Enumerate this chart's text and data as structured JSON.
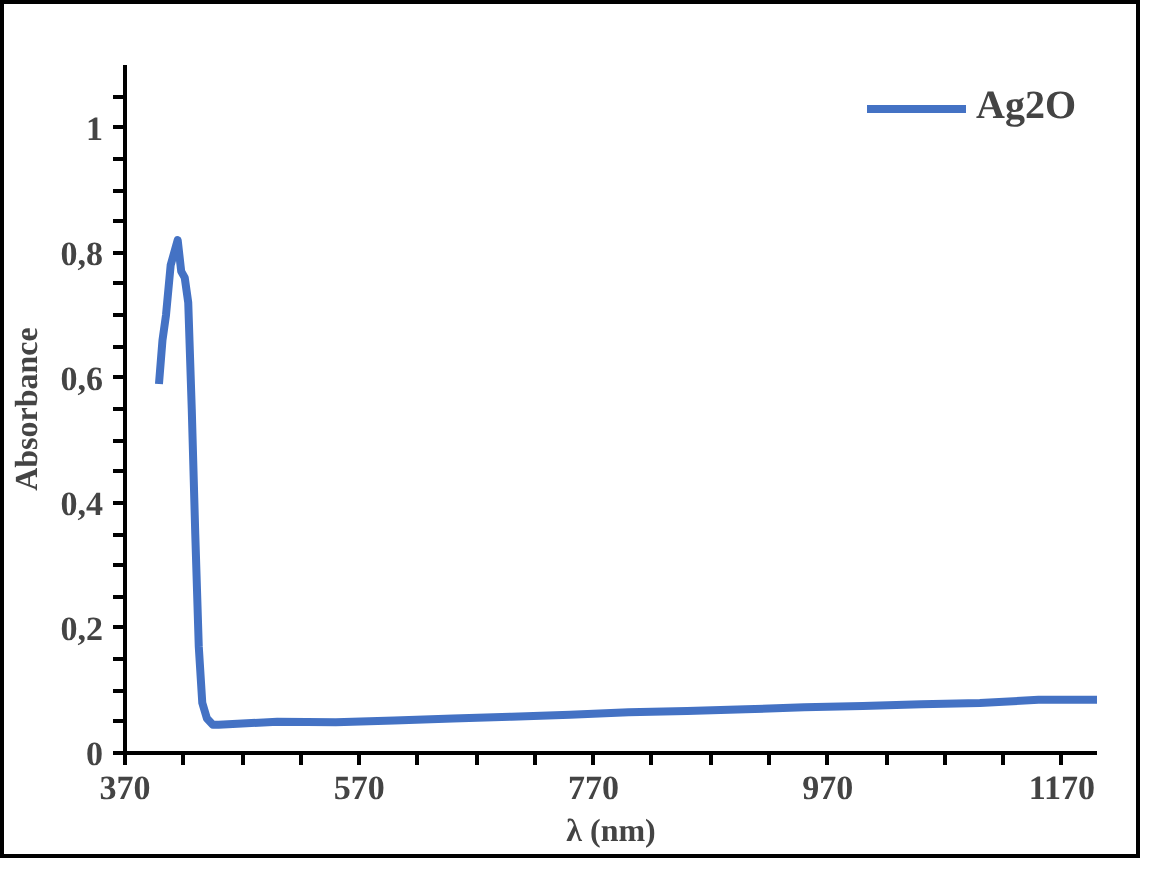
{
  "chart_data": {
    "type": "line",
    "xlabel": "λ (nm)",
    "ylabel": "Absorbance",
    "x": [
      399,
      402,
      405,
      409,
      412,
      415,
      418,
      421,
      424,
      427,
      430,
      433,
      436,
      440,
      445,
      450,
      470,
      500,
      550,
      600,
      650,
      700,
      750,
      800,
      850,
      900,
      950,
      1000,
      1050,
      1100,
      1150,
      1200
    ],
    "series": [
      {
        "name": "Ag2O",
        "color": "#4472c4",
        "values": [
          0.59,
          0.66,
          0.7,
          0.78,
          0.8,
          0.82,
          0.77,
          0.76,
          0.72,
          0.55,
          0.35,
          0.17,
          0.08,
          0.055,
          0.045,
          0.045,
          0.047,
          0.05,
          0.049,
          0.052,
          0.055,
          0.058,
          0.061,
          0.065,
          0.067,
          0.07,
          0.073,
          0.075,
          0.078,
          0.08,
          0.085,
          0.085
        ]
      }
    ],
    "xlim": [
      370,
      1200
    ],
    "ylim": [
      0,
      1.1
    ],
    "xticks": [
      370,
      {
        "value": 420,
        "label": null
      },
      {
        "value": 470,
        "label": null
      },
      {
        "value": 520,
        "label": null
      },
      570,
      {
        "value": 620,
        "label": null
      },
      {
        "value": 670,
        "label": null
      },
      {
        "value": 720,
        "label": null
      },
      770,
      {
        "value": 820,
        "label": null
      },
      {
        "value": 870,
        "label": null
      },
      {
        "value": 920,
        "label": null
      },
      970,
      {
        "value": 1020,
        "label": null
      },
      {
        "value": 1070,
        "label": null
      },
      {
        "value": 1120,
        "label": null
      },
      1170
    ],
    "yticks": [
      0,
      {
        "value": 0.05,
        "label": null
      },
      {
        "value": 0.1,
        "label": null
      },
      {
        "value": 0.15,
        "label": null
      },
      {
        "value": 0.2,
        "label": "0,2"
      },
      {
        "value": 0.25,
        "label": null
      },
      {
        "value": 0.3,
        "label": null
      },
      {
        "value": 0.35,
        "label": null
      },
      {
        "value": 0.4,
        "label": "0,4"
      },
      {
        "value": 0.45,
        "label": null
      },
      {
        "value": 0.5,
        "label": null
      },
      {
        "value": 0.55,
        "label": null
      },
      {
        "value": 0.6,
        "label": "0,6"
      },
      {
        "value": 0.65,
        "label": null
      },
      {
        "value": 0.7,
        "label": null
      },
      {
        "value": 0.75,
        "label": null
      },
      {
        "value": 0.8,
        "label": "0,8"
      },
      {
        "value": 0.85,
        "label": null
      },
      {
        "value": 0.9,
        "label": null
      },
      {
        "value": 0.95,
        "label": null
      },
      1,
      {
        "value": 1.05,
        "label": null
      }
    ],
    "legend": "top right",
    "grid": false,
    "marker": "none",
    "line_style": "solid"
  }
}
